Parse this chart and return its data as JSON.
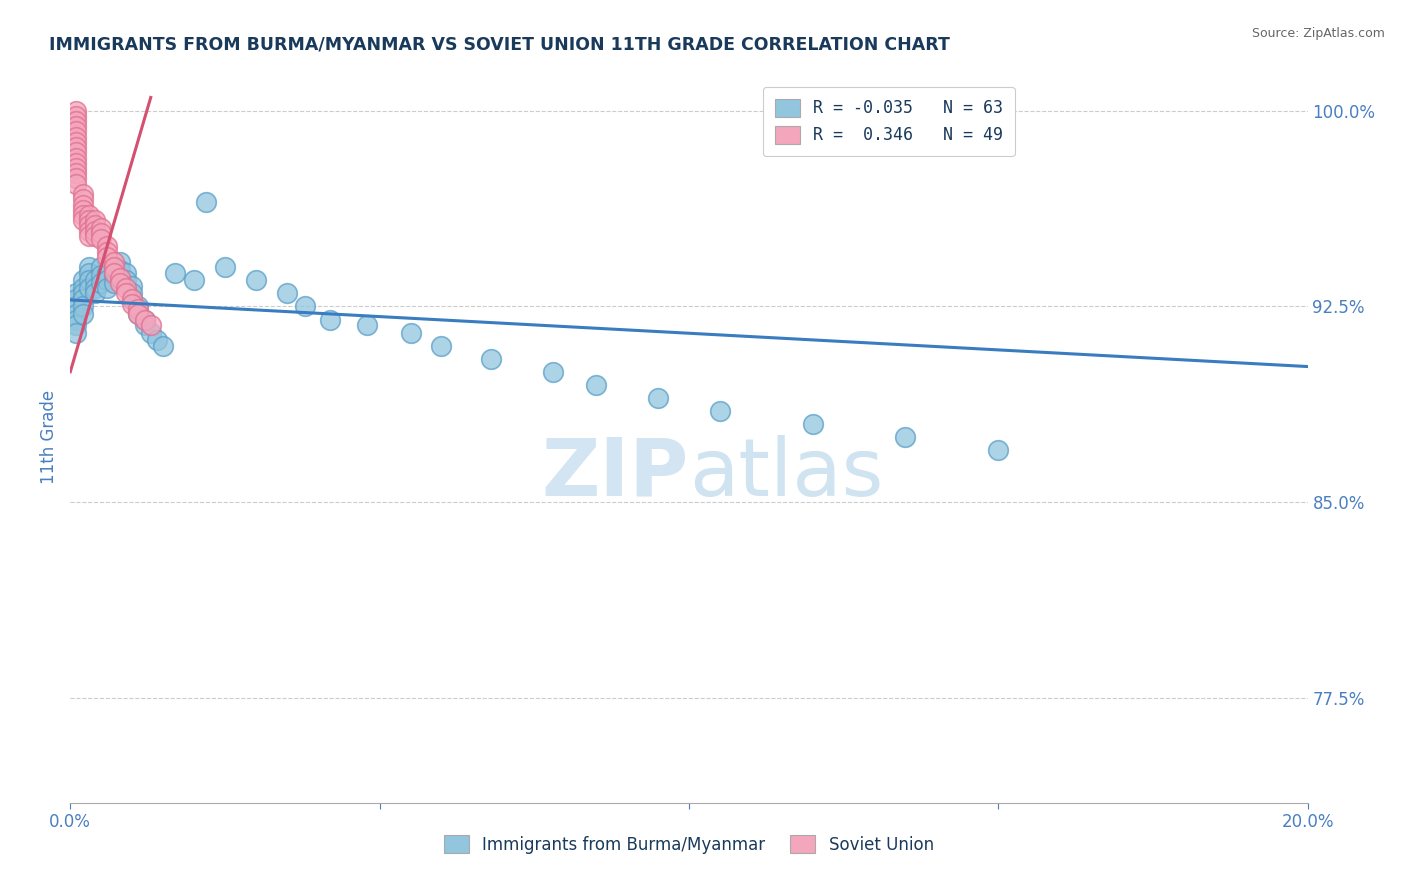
{
  "title": "IMMIGRANTS FROM BURMA/MYANMAR VS SOVIET UNION 11TH GRADE CORRELATION CHART",
  "source": "Source: ZipAtlas.com",
  "ylabel": "11th Grade",
  "ytick_labels": [
    "100.0%",
    "92.5%",
    "85.0%",
    "77.5%"
  ],
  "ytick_values": [
    1.0,
    0.925,
    0.85,
    0.775
  ],
  "xlim": [
    0.0,
    0.2
  ],
  "ylim": [
    0.735,
    1.015
  ],
  "legend_line1": "R = -0.035   N = 63",
  "legend_line2": "R =  0.346   N = 49",
  "blue_color": "#92c5de",
  "blue_edge_color": "#5a9fc8",
  "pink_color": "#f4a6bc",
  "pink_edge_color": "#e07090",
  "pink_line_color": "#d45070",
  "blue_line_color": "#3a7cc0",
  "title_color": "#1a3a5c",
  "axis_color": "#4a7fc0",
  "watermark_color": "#cce0f0",
  "background_color": "#ffffff",
  "grid_color": "#cccccc",
  "blue_scatter_x": [
    0.001,
    0.001,
    0.001,
    0.001,
    0.001,
    0.001,
    0.001,
    0.002,
    0.002,
    0.002,
    0.002,
    0.002,
    0.002,
    0.003,
    0.003,
    0.003,
    0.003,
    0.004,
    0.004,
    0.004,
    0.005,
    0.005,
    0.005,
    0.006,
    0.006,
    0.006,
    0.007,
    0.007,
    0.007,
    0.008,
    0.008,
    0.008,
    0.009,
    0.009,
    0.01,
    0.01,
    0.01,
    0.011,
    0.011,
    0.012,
    0.012,
    0.013,
    0.014,
    0.015,
    0.017,
    0.02,
    0.022,
    0.025,
    0.03,
    0.035,
    0.038,
    0.042,
    0.048,
    0.055,
    0.06,
    0.068,
    0.078,
    0.085,
    0.095,
    0.105,
    0.12,
    0.135,
    0.15
  ],
  "blue_scatter_y": [
    0.93,
    0.928,
    0.925,
    0.922,
    0.92,
    0.918,
    0.915,
    0.935,
    0.932,
    0.93,
    0.928,
    0.925,
    0.922,
    0.94,
    0.938,
    0.935,
    0.932,
    0.935,
    0.932,
    0.93,
    0.94,
    0.937,
    0.934,
    0.938,
    0.935,
    0.932,
    0.94,
    0.937,
    0.934,
    0.942,
    0.939,
    0.936,
    0.938,
    0.935,
    0.933,
    0.93,
    0.928,
    0.925,
    0.922,
    0.92,
    0.918,
    0.915,
    0.912,
    0.91,
    0.938,
    0.935,
    0.965,
    0.94,
    0.935,
    0.93,
    0.925,
    0.92,
    0.918,
    0.915,
    0.91,
    0.905,
    0.9,
    0.895,
    0.89,
    0.885,
    0.88,
    0.875,
    0.87
  ],
  "pink_scatter_x": [
    0.001,
    0.001,
    0.001,
    0.001,
    0.001,
    0.001,
    0.001,
    0.001,
    0.001,
    0.001,
    0.001,
    0.001,
    0.001,
    0.001,
    0.001,
    0.002,
    0.002,
    0.002,
    0.002,
    0.002,
    0.002,
    0.003,
    0.003,
    0.003,
    0.003,
    0.003,
    0.004,
    0.004,
    0.004,
    0.004,
    0.005,
    0.005,
    0.005,
    0.006,
    0.006,
    0.006,
    0.007,
    0.007,
    0.007,
    0.008,
    0.008,
    0.009,
    0.009,
    0.01,
    0.01,
    0.011,
    0.011,
    0.012,
    0.013
  ],
  "pink_scatter_y": [
    1.0,
    0.998,
    0.996,
    0.994,
    0.992,
    0.99,
    0.988,
    0.986,
    0.984,
    0.982,
    0.98,
    0.978,
    0.976,
    0.974,
    0.972,
    0.968,
    0.966,
    0.964,
    0.962,
    0.96,
    0.958,
    0.96,
    0.958,
    0.956,
    0.954,
    0.952,
    0.958,
    0.956,
    0.954,
    0.952,
    0.955,
    0.953,
    0.951,
    0.948,
    0.946,
    0.944,
    0.942,
    0.94,
    0.938,
    0.936,
    0.934,
    0.932,
    0.93,
    0.928,
    0.926,
    0.924,
    0.922,
    0.92,
    0.918
  ],
  "blue_trend_x": [
    0.0,
    0.2
  ],
  "blue_trend_y": [
    0.9275,
    0.902
  ],
  "pink_trend_x": [
    0.0,
    0.013
  ],
  "pink_trend_y": [
    0.9,
    1.005
  ],
  "x_tick_positions": [
    0.0,
    0.05,
    0.1,
    0.15,
    0.2
  ],
  "x_tick_labels": [
    "0.0%",
    "",
    "",
    "",
    "20.0%"
  ],
  "bottom_legend_labels": [
    "Immigrants from Burma/Myanmar",
    "Soviet Union"
  ]
}
